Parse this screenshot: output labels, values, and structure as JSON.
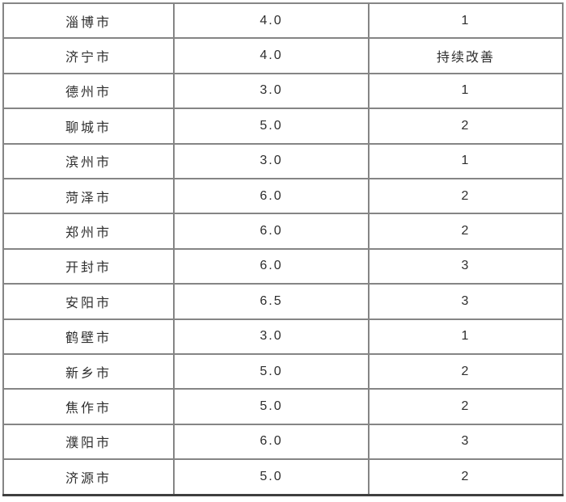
{
  "page": {
    "background": "#ffffff"
  },
  "colors": {
    "grid_border": "#858585",
    "outer_bottom_border": "#3f3f3f",
    "text": "#2e2e2e",
    "background": "#ffffff"
  },
  "table": {
    "note_visible_headers": "",
    "rows": [
      {
        "city": "淄博市",
        "value": "4.0",
        "category": "1"
      },
      {
        "city": "济宁市",
        "value": "4.0",
        "category": "持续改善"
      },
      {
        "city": "德州市",
        "value": "3.0",
        "category": "1"
      },
      {
        "city": "聊城市",
        "value": "5.0",
        "category": "2"
      },
      {
        "city": "滨州市",
        "value": "3.0",
        "category": "1"
      },
      {
        "city": "菏泽市",
        "value": "6.0",
        "category": "2"
      },
      {
        "city": "郑州市",
        "value": "6.0",
        "category": "2"
      },
      {
        "city": "开封市",
        "value": "6.0",
        "category": "3"
      },
      {
        "city": "安阳市",
        "value": "6.5",
        "category": "3"
      },
      {
        "city": "鹤壁市",
        "value": "3.0",
        "category": "1"
      },
      {
        "city": "新乡市",
        "value": "5.0",
        "category": "2"
      },
      {
        "city": "焦作市",
        "value": "5.0",
        "category": "2"
      },
      {
        "city": "濮阳市",
        "value": "6.0",
        "category": "3"
      },
      {
        "city": "济源市",
        "value": "5.0",
        "category": "2"
      }
    ]
  }
}
